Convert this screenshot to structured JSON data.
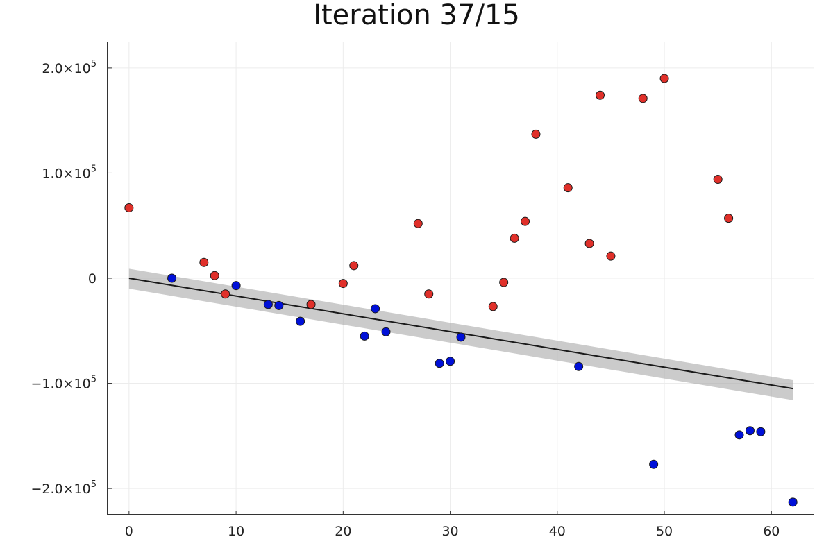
{
  "chart_data": {
    "type": "scatter",
    "title": "Iteration 37/15",
    "xlabel": "",
    "ylabel": "",
    "xlim": [
      -2,
      64
    ],
    "ylim": [
      -225000,
      225000
    ],
    "x_ticks": [
      0,
      10,
      20,
      30,
      40,
      50,
      60
    ],
    "x_tick_labels": [
      "0",
      "10",
      "20",
      "30",
      "40",
      "50",
      "60"
    ],
    "y_ticks": [
      200000,
      100000,
      0,
      -100000,
      -200000
    ],
    "y_tick_labels": [
      {
        "mantissa": "2.0×10",
        "exponent": "5"
      },
      {
        "mantissa": "1.0×10",
        "exponent": "5"
      },
      {
        "mantissa": "0",
        "exponent": ""
      },
      {
        "mantissa": "−1.0×10",
        "exponent": "5"
      },
      {
        "mantissa": "−2.0×10",
        "exponent": "5"
      }
    ],
    "grid": true,
    "legend": "none",
    "colors": {
      "red_points": "#e0302a",
      "blue_points": "#0010d8",
      "fit_line": "#1a1a1a",
      "band": "#a9a9a9",
      "grid": "#ececec",
      "axis": "#333333"
    },
    "fit_line": {
      "x": [
        0,
        62
      ],
      "y": [
        0,
        -105000
      ]
    },
    "confidence_band": {
      "x": [
        0,
        62
      ],
      "upper": [
        9000,
        -97000
      ],
      "lower": [
        -10000,
        -116000
      ]
    },
    "series": [
      {
        "color": "red",
        "points": [
          [
            0,
            67000
          ],
          [
            7,
            15000
          ],
          [
            8,
            2500
          ],
          [
            9,
            -15000
          ],
          [
            17,
            -25000
          ],
          [
            20,
            -5000
          ],
          [
            21,
            12000
          ],
          [
            27,
            52000
          ],
          [
            28,
            -15000
          ],
          [
            34,
            -27000
          ],
          [
            35,
            -4000
          ],
          [
            36,
            38000
          ],
          [
            37,
            54000
          ],
          [
            38,
            137000
          ],
          [
            41,
            86000
          ],
          [
            43,
            33000
          ],
          [
            44,
            174000
          ],
          [
            45,
            21000
          ],
          [
            48,
            171000
          ],
          [
            50,
            190000
          ],
          [
            55,
            94000
          ],
          [
            56,
            57000
          ]
        ]
      },
      {
        "color": "blue",
        "points": [
          [
            4,
            0
          ],
          [
            10,
            -7000
          ],
          [
            13,
            -25000
          ],
          [
            14,
            -26000
          ],
          [
            16,
            -41000
          ],
          [
            22,
            -55000
          ],
          [
            23,
            -29000
          ],
          [
            24,
            -51000
          ],
          [
            29,
            -81000
          ],
          [
            30,
            -79000
          ],
          [
            31,
            -56000
          ],
          [
            42,
            -84000
          ],
          [
            49,
            -177000
          ],
          [
            57,
            -149000
          ],
          [
            58,
            -145000
          ],
          [
            59,
            -146000
          ],
          [
            62,
            -213000
          ]
        ]
      }
    ]
  }
}
